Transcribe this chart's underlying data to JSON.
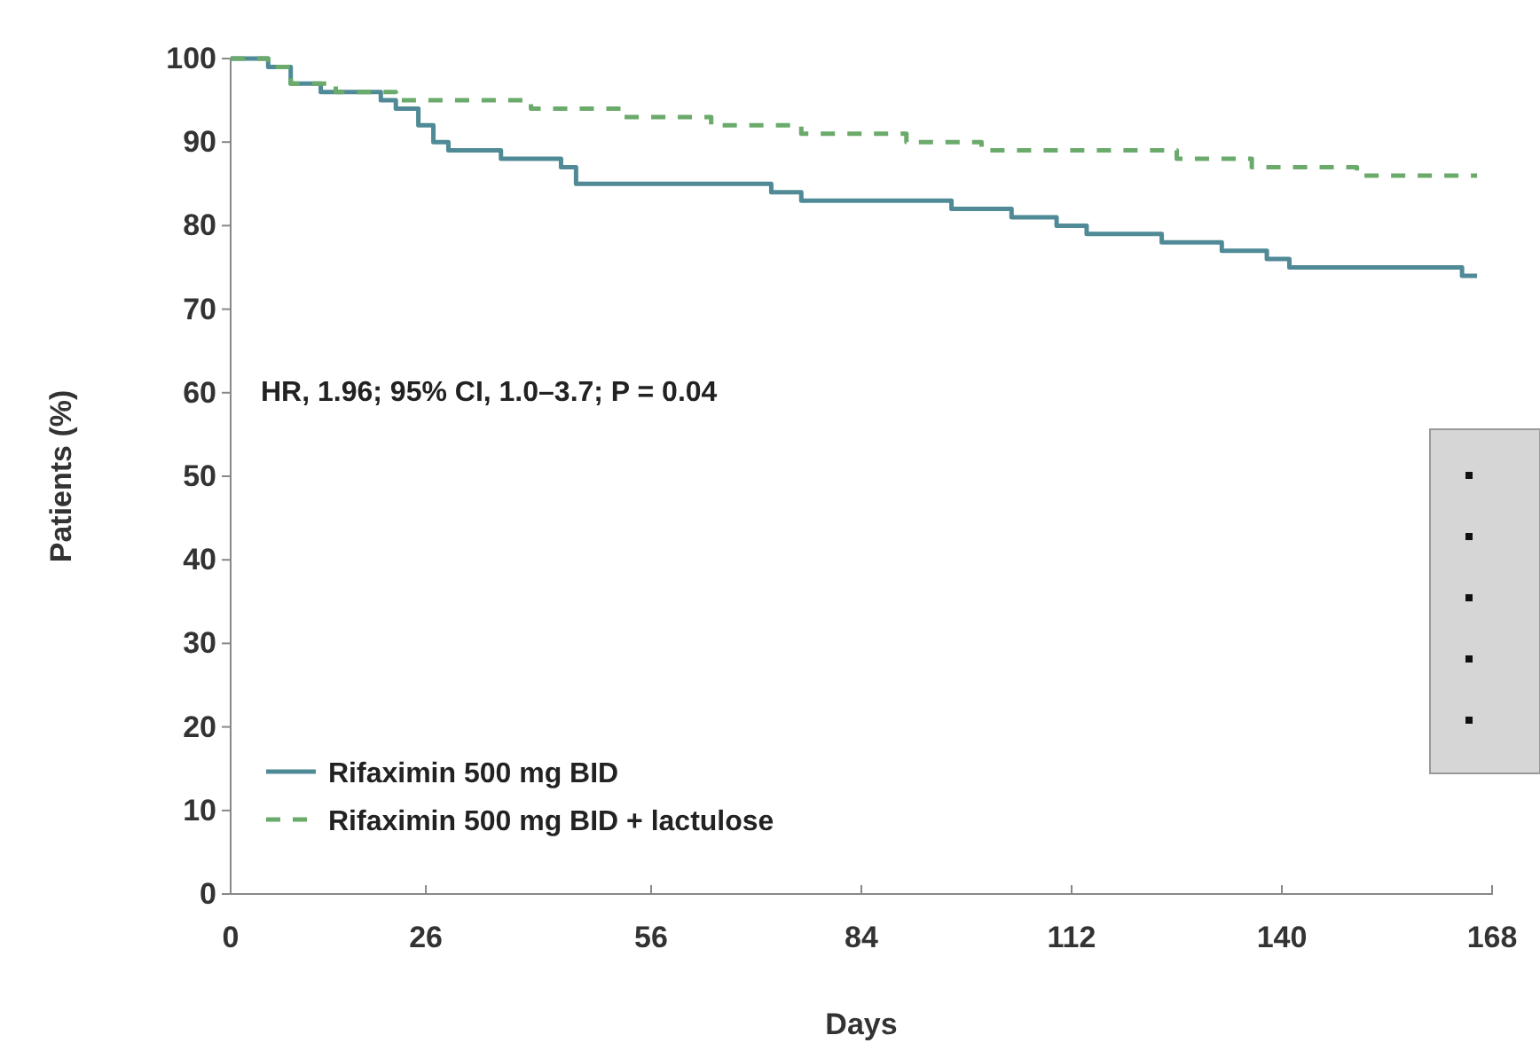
{
  "chart_data": {
    "type": "step",
    "xlabel": "Days",
    "ylabel": "Patients (%)",
    "xlim": [
      0,
      168
    ],
    "ylim": [
      0,
      100
    ],
    "xticks": [
      0,
      26,
      56,
      84,
      112,
      140,
      168
    ],
    "yticks": [
      0,
      10,
      20,
      30,
      40,
      50,
      60,
      70,
      80,
      90,
      100
    ],
    "legend": "bottom left",
    "annotations": [
      "HR, 1.96; 95% CI, 1.0–3.7; P = 0.04"
    ],
    "series": [
      {
        "name": "Rifaximin 500 mg BID",
        "color": "#4f8a96",
        "line_style": "solid",
        "x": [
          0,
          5,
          8,
          12,
          20,
          22,
          25,
          27,
          29,
          36,
          44,
          46,
          72,
          76,
          96,
          104,
          110,
          114,
          124,
          132,
          138,
          141,
          164,
          166
        ],
        "values": [
          100,
          99,
          97,
          96,
          95,
          94,
          92,
          90,
          89,
          88,
          87,
          85,
          84,
          83,
          82,
          81,
          80,
          79,
          78,
          77,
          76,
          75,
          74,
          74
        ]
      },
      {
        "name": "Rifaximin 500 mg BID + lactulose",
        "color": "#6aaa6a",
        "line_style": "dashed",
        "x": [
          0,
          5,
          8,
          14,
          22,
          40,
          52,
          64,
          76,
          90,
          100,
          126,
          136,
          150,
          166
        ],
        "values": [
          100,
          99,
          97,
          96,
          95,
          94,
          93,
          92,
          91,
          90,
          89,
          88,
          87,
          86,
          86
        ]
      }
    ]
  }
}
